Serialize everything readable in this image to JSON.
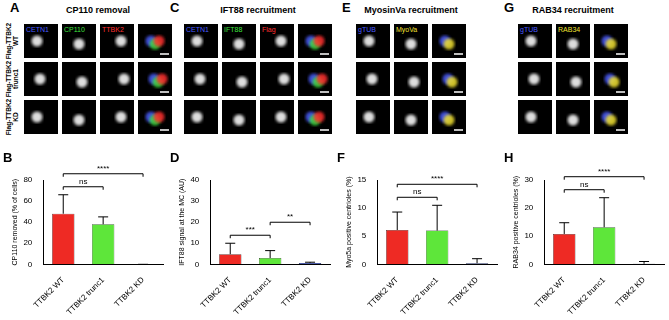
{
  "image_panels": [
    {
      "panel": "A",
      "title": "CP110 removal",
      "rows": [
        "Flag-TTBK2 WT",
        "Flag-TTBK2 trunc1",
        "Flag-TTBK2 KD"
      ],
      "channels": [
        {
          "name": "CETN1",
          "color": "#4a5cff"
        },
        {
          "name": "CP110",
          "color": "#3ee03e"
        },
        {
          "name": "TTBK2",
          "color": "#ff3030"
        }
      ]
    },
    {
      "panel": "C",
      "title": "IFT88 recruitment",
      "channels": [
        {
          "name": "CETN1",
          "color": "#4a5cff"
        },
        {
          "name": "IFT88",
          "color": "#3ee03e"
        },
        {
          "name": "Flag",
          "color": "#ff3030"
        }
      ]
    },
    {
      "panel": "E",
      "title": "MyosinVa recruitment",
      "channels": [
        {
          "name": "gTUB",
          "color": "#4a5cff"
        },
        {
          "name": "MyoVa",
          "color": "#f0e030"
        }
      ]
    },
    {
      "panel": "G",
      "title": "RAB34 recruitment",
      "channels": [
        {
          "name": "gTUB",
          "color": "#4a5cff"
        },
        {
          "name": "RAB34",
          "color": "#f0e030"
        }
      ]
    }
  ],
  "chart_data": [
    {
      "panel": "B",
      "type": "bar",
      "y_label": "CP110 removed (% of cells)",
      "categories": [
        "TTBK2 WT",
        "TTBK2 trunc1",
        "TTBK2 KD"
      ],
      "values": [
        48,
        38,
        0
      ],
      "errors": [
        18,
        7,
        0
      ],
      "colors": [
        "#ee2a24",
        "#5ee63a",
        "#1f3fd6"
      ],
      "ylim": [
        0,
        80
      ],
      "yticks": [
        0,
        20,
        40,
        60,
        80
      ],
      "grid": false,
      "significance": [
        {
          "text": "ns",
          "between": [
            "TTBK2 WT",
            "TTBK2 trunc1"
          ]
        },
        {
          "text": "****",
          "between": [
            "TTBK2 WT",
            "TTBK2 KD"
          ]
        }
      ]
    },
    {
      "panel": "D",
      "type": "bar",
      "y_label": "IFT88 signal at the MC (AU)",
      "categories": [
        "TTBK2 WT",
        "TTBK2 trunc1",
        "TTBK2 KD"
      ],
      "values": [
        4.8,
        3,
        0.6
      ],
      "errors": [
        5.2,
        3.5,
        0.4
      ],
      "colors": [
        "#ee2a24",
        "#5ee63a",
        "#1f3fd6"
      ],
      "ylim": [
        0,
        40
      ],
      "yticks": [
        0,
        10,
        20,
        30,
        40
      ],
      "grid": false,
      "significance": [
        {
          "text": "***",
          "between": [
            "TTBK2 WT",
            "TTBK2 trunc1"
          ]
        },
        {
          "text": "**",
          "between": [
            "TTBK2 trunc1",
            "TTBK2 KD"
          ]
        }
      ]
    },
    {
      "panel": "F",
      "type": "bar",
      "y_label": "Myo5a positive centrioles (%)",
      "categories": [
        "TTBK2 WT",
        "TTBK2 trunc1",
        "TTBK2 KD"
      ],
      "values": [
        6.1,
        6,
        0.2
      ],
      "errors": [
        3.2,
        4.5,
        0.8
      ],
      "colors": [
        "#ee2a24",
        "#5ee63a",
        "#1f3fd6"
      ],
      "ylim": [
        0,
        15
      ],
      "yticks": [
        0,
        5,
        10,
        15
      ],
      "grid": false,
      "significance": [
        {
          "text": "ns",
          "between": [
            "TTBK2 WT",
            "TTBK2 trunc1"
          ]
        },
        {
          "text": "****",
          "between": [
            "TTBK2 WT",
            "TTBK2 KD"
          ]
        }
      ]
    },
    {
      "panel": "H",
      "type": "bar",
      "y_label": "RAB34 positive centrioles (%)",
      "categories": [
        "TTBK2 WT",
        "TTBK2 trunc1",
        "TTBK2 KD"
      ],
      "values": [
        10.8,
        13.2,
        0.2
      ],
      "errors": [
        4,
        10.5,
        0.8
      ],
      "colors": [
        "#ee2a24",
        "#5ee63a",
        "#1f3fd6"
      ],
      "ylim": [
        0,
        30
      ],
      "yticks": [
        0,
        10,
        20,
        30
      ],
      "grid": false,
      "significance": [
        {
          "text": "ns",
          "between": [
            "TTBK2 WT",
            "TTBK2 trunc1"
          ]
        },
        {
          "text": "****",
          "between": [
            "TTBK2 WT",
            "TTBK2 KD"
          ]
        }
      ]
    }
  ]
}
